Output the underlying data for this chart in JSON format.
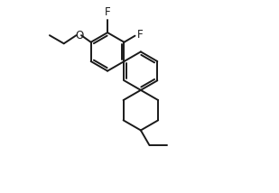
{
  "bg_color": "#ffffff",
  "line_color": "#1a1a1a",
  "line_width": 1.4,
  "font_size": 8.5,
  "label_color": "#1a1a1a",
  "xlim": [
    -2.5,
    2.2
  ],
  "ylim": [
    -2.4,
    1.8
  ]
}
